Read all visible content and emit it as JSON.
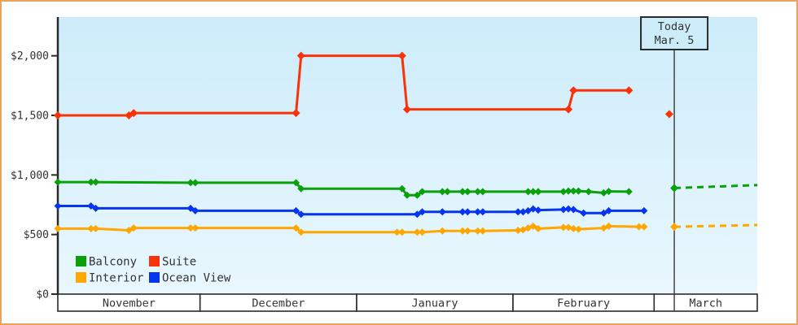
{
  "chart_data": {
    "type": "line",
    "title": "",
    "currency_unit": "USD",
    "y_axis": {
      "range": [
        0,
        2330
      ],
      "ticks": [
        {
          "value": 0,
          "label": "$0"
        },
        {
          "value": 500,
          "label": "$500"
        },
        {
          "value": 1000,
          "label": "$1,000"
        },
        {
          "value": 1500,
          "label": "$1,500"
        },
        {
          "value": 2000,
          "label": "$2,000"
        }
      ]
    },
    "x_axis": {
      "months": [
        "November",
        "December",
        "January",
        "February",
        "March"
      ]
    },
    "today": {
      "line1": "Today",
      "line2": "Mar. 5",
      "month_index": 4,
      "day": 5
    },
    "colors": {
      "balcony": "#0aa00a",
      "suite": "#f93307",
      "interior": "#ffa600",
      "ocean_view": "#0535f0",
      "axis": "#2a2a2a",
      "today_line": "#444444",
      "plot_bg_top": "#cdecfa",
      "plot_bg_bottom": "#e9f7fd",
      "frame_border": "#e9a45c"
    },
    "legend": {
      "rows": [
        [
          {
            "label": "Balcony",
            "series": "balcony"
          },
          {
            "label": "Suite",
            "series": "suite"
          }
        ],
        [
          {
            "label": "Interior",
            "series": "interior"
          },
          {
            "label": "Ocean View",
            "series": "ocean_view"
          }
        ]
      ]
    },
    "series": [
      {
        "id": "suite",
        "name": "Suite",
        "points": [
          [
            0,
            1,
            1500
          ],
          [
            0,
            16,
            1500
          ],
          [
            0,
            17,
            1520
          ],
          [
            1,
            20,
            1520
          ],
          [
            1,
            21,
            2000
          ],
          [
            2,
            10,
            2000
          ],
          [
            2,
            11,
            1550
          ],
          [
            3,
            12,
            1550
          ],
          [
            3,
            13,
            1710
          ],
          [
            3,
            24,
            1710
          ]
        ],
        "isolated": [
          [
            4,
            4,
            1510
          ]
        ]
      },
      {
        "id": "balcony",
        "name": "Balcony",
        "points": [
          [
            0,
            1,
            940
          ],
          [
            0,
            8,
            940
          ],
          [
            0,
            9,
            940
          ],
          [
            0,
            29,
            935
          ],
          [
            0,
            30,
            935
          ],
          [
            1,
            20,
            935
          ],
          [
            1,
            21,
            885
          ],
          [
            2,
            10,
            885
          ],
          [
            2,
            11,
            830
          ],
          [
            2,
            13,
            830
          ],
          [
            2,
            14,
            860
          ],
          [
            2,
            18,
            860
          ],
          [
            2,
            19,
            860
          ],
          [
            2,
            22,
            860
          ],
          [
            2,
            23,
            860
          ],
          [
            2,
            25,
            860
          ],
          [
            2,
            26,
            860
          ],
          [
            3,
            4,
            860
          ],
          [
            3,
            5,
            860
          ],
          [
            3,
            6,
            860
          ],
          [
            3,
            11,
            860
          ],
          [
            3,
            12,
            865
          ],
          [
            3,
            13,
            865
          ],
          [
            3,
            14,
            865
          ],
          [
            3,
            16,
            860
          ],
          [
            3,
            19,
            850
          ],
          [
            3,
            20,
            862
          ],
          [
            3,
            24,
            860
          ]
        ],
        "forecast": [
          [
            4,
            5,
            890
          ],
          [
            4,
            21.5,
            915
          ]
        ]
      },
      {
        "id": "ocean_view",
        "name": "Ocean View",
        "points": [
          [
            0,
            1,
            740
          ],
          [
            0,
            8,
            740
          ],
          [
            0,
            9,
            720
          ],
          [
            0,
            29,
            720
          ],
          [
            0,
            30,
            700
          ],
          [
            1,
            20,
            700
          ],
          [
            1,
            21,
            670
          ],
          [
            2,
            13,
            670
          ],
          [
            2,
            14,
            690
          ],
          [
            2,
            18,
            690
          ],
          [
            2,
            22,
            690
          ],
          [
            2,
            23,
            690
          ],
          [
            2,
            25,
            690
          ],
          [
            2,
            26,
            690
          ],
          [
            3,
            2,
            690
          ],
          [
            3,
            3,
            690
          ],
          [
            3,
            4,
            700
          ],
          [
            3,
            5,
            715
          ],
          [
            3,
            6,
            705
          ],
          [
            3,
            11,
            710
          ],
          [
            3,
            12,
            715
          ],
          [
            3,
            13,
            710
          ],
          [
            3,
            15,
            680
          ],
          [
            3,
            19,
            680
          ],
          [
            3,
            20,
            700
          ],
          [
            3,
            27,
            700
          ]
        ]
      },
      {
        "id": "interior",
        "name": "Interior",
        "points": [
          [
            0,
            1,
            550
          ],
          [
            0,
            8,
            550
          ],
          [
            0,
            9,
            550
          ],
          [
            0,
            16,
            535
          ],
          [
            0,
            17,
            555
          ],
          [
            0,
            29,
            555
          ],
          [
            0,
            30,
            555
          ],
          [
            1,
            20,
            555
          ],
          [
            1,
            21,
            520
          ],
          [
            2,
            9,
            520
          ],
          [
            2,
            10,
            520
          ],
          [
            2,
            13,
            520
          ],
          [
            2,
            14,
            520
          ],
          [
            2,
            18,
            530
          ],
          [
            2,
            22,
            530
          ],
          [
            2,
            23,
            530
          ],
          [
            2,
            25,
            530
          ],
          [
            2,
            26,
            530
          ],
          [
            3,
            2,
            535
          ],
          [
            3,
            3,
            540
          ],
          [
            3,
            4,
            555
          ],
          [
            3,
            5,
            570
          ],
          [
            3,
            6,
            550
          ],
          [
            3,
            11,
            560
          ],
          [
            3,
            12,
            560
          ],
          [
            3,
            13,
            550
          ],
          [
            3,
            14,
            545
          ],
          [
            3,
            19,
            555
          ],
          [
            3,
            20,
            570
          ],
          [
            3,
            26,
            565
          ],
          [
            3,
            27,
            565
          ]
        ],
        "forecast": [
          [
            4,
            5,
            565
          ],
          [
            4,
            21.5,
            580
          ]
        ]
      }
    ]
  }
}
